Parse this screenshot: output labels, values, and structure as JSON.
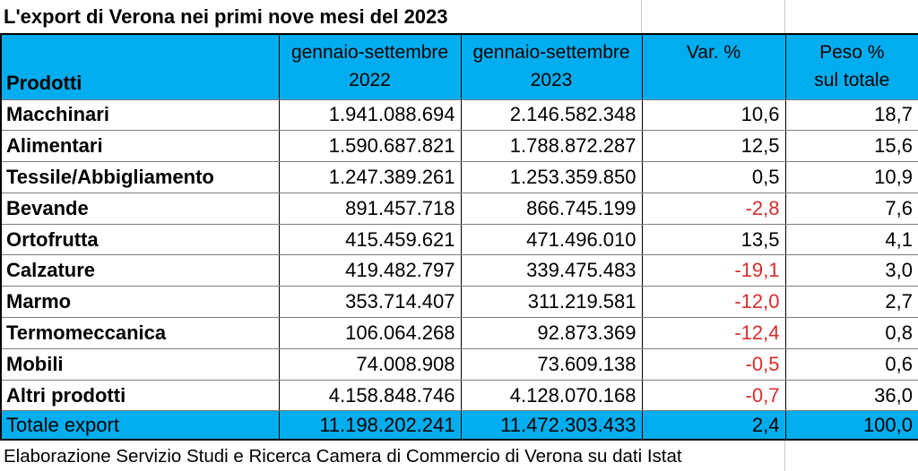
{
  "accent_color": "#00AEEF",
  "negative_color": "#D92B2B",
  "title": "L'export di Verona nei primi nove mesi del 2023",
  "header": {
    "products": "Prodotti",
    "period_2022": {
      "line1": "gennaio-settembre",
      "line2": "2022"
    },
    "period_2023": {
      "line1": "gennaio-settembre",
      "line2": "2023"
    },
    "variation": "Var. %",
    "weight": {
      "line1": "Peso %",
      "line2": "sul totale"
    }
  },
  "rows": [
    {
      "label": "Macchinari",
      "y2022": "1.941.088.694",
      "y2023": "2.146.582.348",
      "var": "10,6",
      "peso": "18,7"
    },
    {
      "label": "Alimentari",
      "y2022": "1.590.687.821",
      "y2023": "1.788.872.287",
      "var": "12,5",
      "peso": "15,6"
    },
    {
      "label": "Tessile/Abbigliamento",
      "y2022": "1.247.389.261",
      "y2023": "1.253.359.850",
      "var": "0,5",
      "peso": "10,9"
    },
    {
      "label": "Bevande",
      "y2022": "891.457.718",
      "y2023": "866.745.199",
      "var": "-2,8",
      "peso": "7,6"
    },
    {
      "label": "Ortofrutta",
      "y2022": "415.459.621",
      "y2023": "471.496.010",
      "var": "13,5",
      "peso": "4,1"
    },
    {
      "label": "Calzature",
      "y2022": "419.482.797",
      "y2023": "339.475.483",
      "var": "-19,1",
      "peso": "3,0"
    },
    {
      "label": "Marmo",
      "y2022": "353.714.407",
      "y2023": "311.219.581",
      "var": "-12,0",
      "peso": "2,7"
    },
    {
      "label": "Termomeccanica",
      "y2022": "106.064.268",
      "y2023": "92.873.369",
      "var": "-12,4",
      "peso": "0,8"
    },
    {
      "label": "Mobili",
      "y2022": "74.008.908",
      "y2023": "73.609.138",
      "var": "-0,5",
      "peso": "0,6"
    },
    {
      "label": "Altri prodotti",
      "y2022": "4.158.848.746",
      "y2023": "4.128.070.168",
      "var": "-0,7",
      "peso": "36,0"
    }
  ],
  "total_row": {
    "label": "Totale export",
    "y2022": "11.198.202.241",
    "y2023": "11.472.303.433",
    "var": "2,4",
    "peso": "100,0"
  },
  "footer": "Elaborazione Servizio Studi e Ricerca Camera di Commercio di Verona su dati Istat",
  "chart_data": {
    "type": "table",
    "title": "L'export di Verona nei primi nove mesi del 2023",
    "columns": [
      "Prodotti",
      "gennaio-settembre 2022",
      "gennaio-settembre 2023",
      "Var. %",
      "Peso % sul totale"
    ],
    "rows": [
      [
        "Macchinari",
        1941088694,
        2146582348,
        10.6,
        18.7
      ],
      [
        "Alimentari",
        1590687821,
        1788872287,
        12.5,
        15.6
      ],
      [
        "Tessile/Abbigliamento",
        1247389261,
        1253359850,
        0.5,
        10.9
      ],
      [
        "Bevande",
        891457718,
        866745199,
        -2.8,
        7.6
      ],
      [
        "Ortofrutta",
        415459621,
        471496010,
        13.5,
        4.1
      ],
      [
        "Calzature",
        419482797,
        339475483,
        -19.1,
        3.0
      ],
      [
        "Marmo",
        353714407,
        311219581,
        -12.0,
        2.7
      ],
      [
        "Termomeccanica",
        106064268,
        92873369,
        -12.4,
        0.8
      ],
      [
        "Mobili",
        74008908,
        73609138,
        -0.5,
        0.6
      ],
      [
        "Altri prodotti",
        4158848746,
        4128070168,
        -0.7,
        36.0
      ]
    ],
    "total": [
      "Totale export",
      11198202241,
      11472303433,
      2.4,
      100.0
    ],
    "annotations": [
      "Negative Var. % values shown in red"
    ],
    "source": "Elaborazione Servizio Studi e Ricerca Camera di Commercio di Verona su dati Istat"
  }
}
